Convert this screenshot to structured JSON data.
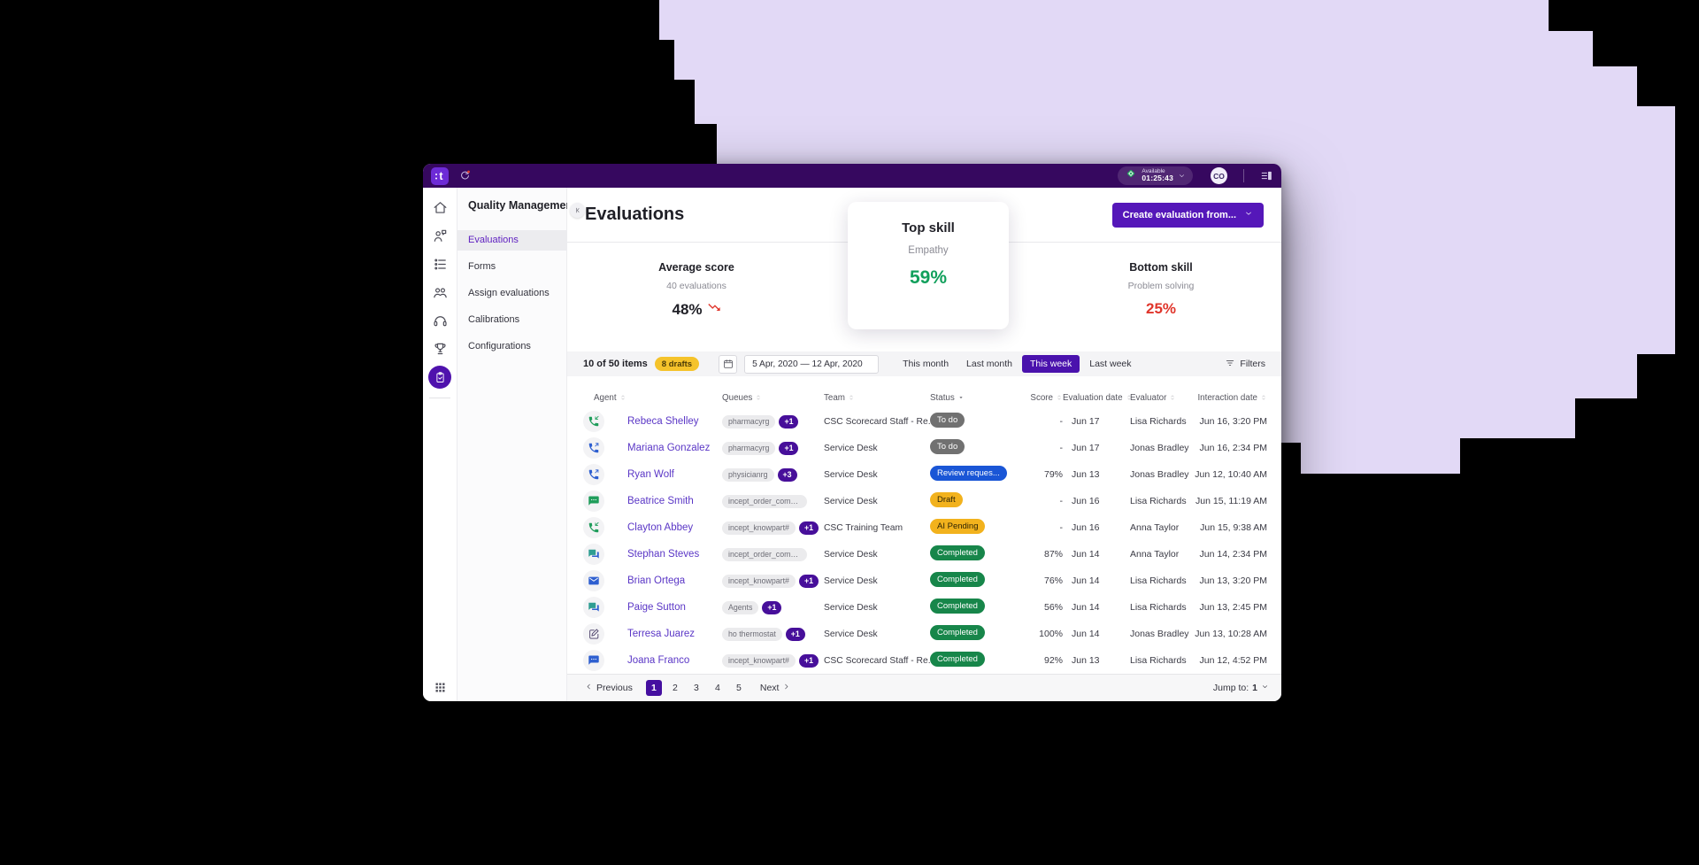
{
  "topbar": {
    "logo_letter": "t",
    "status": {
      "label": "Available",
      "timer": "01:25:43"
    },
    "avatar": "CO"
  },
  "rail": {
    "icons": [
      {
        "name": "home",
        "active": false
      },
      {
        "name": "conversation",
        "active": false
      },
      {
        "name": "workflow",
        "active": false
      },
      {
        "name": "teams",
        "active": false
      },
      {
        "name": "headset",
        "active": false
      },
      {
        "name": "trophy",
        "active": false
      },
      {
        "name": "quality",
        "active": true
      }
    ]
  },
  "nav": {
    "title": "Quality Management",
    "items": [
      {
        "label": "Evaluations",
        "active": true
      },
      {
        "label": "Forms",
        "active": false
      },
      {
        "label": "Assign evaluations",
        "active": false
      },
      {
        "label": "Calibrations",
        "active": false
      },
      {
        "label": "Configurations",
        "active": false
      }
    ]
  },
  "header": {
    "title": "Evaluations",
    "create_button": "Create evaluation from..."
  },
  "stats": {
    "average_score": {
      "title": "Average score",
      "subtitle": "40 evaluations",
      "value": "48%",
      "trend": "down"
    },
    "top_skill": {
      "title": "Top skill",
      "subtitle": "Empathy",
      "value": "59%"
    },
    "bottom_skill": {
      "title": "Bottom skill",
      "subtitle": "Problem solving",
      "value": "25%"
    }
  },
  "filter_bar": {
    "items_count": "10 of 50 items",
    "drafts_badge": "8 drafts",
    "date_range": "5 Apr, 2020 — 12 Apr, 2020",
    "quick_filters": [
      {
        "label": "This month",
        "active": false
      },
      {
        "label": "Last month",
        "active": false
      },
      {
        "label": "This week",
        "active": true
      },
      {
        "label": "Last week",
        "active": false
      }
    ],
    "filters_label": "Filters"
  },
  "table": {
    "columns": [
      {
        "label": "Agent",
        "sort": "both",
        "align": "left"
      },
      {
        "label": "Queues",
        "sort": "both",
        "align": "left"
      },
      {
        "label": "Team",
        "sort": "both",
        "align": "left"
      },
      {
        "label": "Status",
        "sort": "desc",
        "align": "left"
      },
      {
        "label": "Score",
        "sort": "both",
        "align": "right"
      },
      {
        "label": "Evaluation date",
        "sort": "both",
        "align": "left"
      },
      {
        "label": "Evaluator",
        "sort": "both",
        "align": "left"
      },
      {
        "label": "Interaction date",
        "sort": "both",
        "align": "right"
      }
    ],
    "rows": [
      {
        "channel": {
          "icon": "phone-incoming",
          "color": "#1f9d5b"
        },
        "agent": "Rebeca Shelley",
        "queue": "pharmacyrg",
        "queue_extra": "+1",
        "team": "CSC Scorecard Staff - Re...",
        "status": "To do",
        "status_type": "todo",
        "score": "-",
        "evaluation_date": "Jun 17",
        "evaluator": "Lisa Richards",
        "interaction_date": "Jun 16, 3:20 PM"
      },
      {
        "channel": {
          "icon": "phone-outgoing",
          "color": "#2e5fd0"
        },
        "agent": "Mariana Gonzalez",
        "queue": "pharmacyrg",
        "queue_extra": "+1",
        "team": "Service Desk",
        "status": "To do",
        "status_type": "todo",
        "score": "-",
        "evaluation_date": "Jun 17",
        "evaluator": "Jonas Bradley",
        "interaction_date": "Jun 16, 2:34 PM"
      },
      {
        "channel": {
          "icon": "phone-outgoing",
          "color": "#2e5fd0"
        },
        "agent": "Ryan Wolf",
        "queue": "physicianrg",
        "queue_extra": "+3",
        "team": "Service Desk",
        "status": "Review reques...",
        "status_type": "review",
        "score": "79%",
        "evaluation_date": "Jun 13",
        "evaluator": "Jonas Bradley",
        "interaction_date": "Jun 12, 10:40 AM"
      },
      {
        "channel": {
          "icon": "chat",
          "color": "#1f9d5b"
        },
        "agent": "Beatrice Smith",
        "queue": "incept_order_completion",
        "queue_extra": null,
        "team": "Service Desk",
        "status": "Draft",
        "status_type": "draft",
        "score": "-",
        "evaluation_date": "Jun 16",
        "evaluator": "Lisa Richards",
        "interaction_date": "Jun 15, 11:19 AM"
      },
      {
        "channel": {
          "icon": "phone-incoming",
          "color": "#1f9d5b"
        },
        "agent": "Clayton Abbey",
        "queue": "incept_knowpart#",
        "queue_extra": "+1",
        "team": "CSC Training Team",
        "status": "AI Pending",
        "status_type": "pending",
        "score": "-",
        "evaluation_date": "Jun 16",
        "evaluator": "Anna Taylor",
        "interaction_date": "Jun 15, 9:38 AM"
      },
      {
        "channel": {
          "icon": "chat-double",
          "color": "#2f9e92"
        },
        "agent": "Stephan Steves",
        "queue": "incept_order_completion",
        "queue_extra": null,
        "team": "Service Desk",
        "status": "Completed",
        "status_type": "completed",
        "score": "87%",
        "evaluation_date": "Jun 14",
        "evaluator": "Anna Taylor",
        "interaction_date": "Jun 14, 2:34 PM"
      },
      {
        "channel": {
          "icon": "mail",
          "color": "#2e5fd0"
        },
        "agent": "Brian Ortega",
        "queue": "incept_knowpart#",
        "queue_extra": "+1",
        "team": "Service Desk",
        "status": "Completed",
        "status_type": "completed",
        "score": "76%",
        "evaluation_date": "Jun 14",
        "evaluator": "Lisa Richards",
        "interaction_date": "Jun 13, 3:20 PM"
      },
      {
        "channel": {
          "icon": "chat-double",
          "color": "#2f9e92"
        },
        "agent": "Paige Sutton",
        "queue": "Agents",
        "queue_extra": "+1",
        "team": "Service Desk",
        "status": "Completed",
        "status_type": "completed",
        "score": "56%",
        "evaluation_date": "Jun 14",
        "evaluator": "Lisa Richards",
        "interaction_date": "Jun 13, 2:45 PM"
      },
      {
        "channel": {
          "icon": "note",
          "color": "#453a63"
        },
        "agent": "Terresa Juarez",
        "queue": "ho thermostat",
        "queue_extra": "+1",
        "team": "Service Desk",
        "status": "Completed",
        "status_type": "completed",
        "score": "100%",
        "evaluation_date": "Jun 14",
        "evaluator": "Jonas Bradley",
        "interaction_date": "Jun 13, 10:28 AM"
      },
      {
        "channel": {
          "icon": "chat",
          "color": "#2e5fd0"
        },
        "agent": "Joana Franco",
        "queue": "incept_knowpart#",
        "queue_extra": "+1",
        "team": "CSC Scorecard Staff - Re...",
        "status": "Completed",
        "status_type": "completed",
        "score": "92%",
        "evaluation_date": "Jun 13",
        "evaluator": "Lisa Richards",
        "interaction_date": "Jun 12, 4:52 PM"
      }
    ]
  },
  "pagination": {
    "prev_label": "Previous",
    "pages": [
      "1",
      "2",
      "3",
      "4",
      "5"
    ],
    "active_page": "1",
    "next_label": "Next",
    "jump_label": "Jump to:",
    "jump_value": "1"
  },
  "colors": {
    "topbar": "#36085f",
    "accent_button": "#5517b9",
    "active_selection": "#4a12ad",
    "positive_green": "#12a05c",
    "negative_red": "#e0352b",
    "status_completed": "#17864a",
    "status_todo": "#717171",
    "status_draft": "#f2b21d",
    "status_review": "#1a56d6",
    "drafts_badge": "#f5c32b",
    "background_blob": "#e2d9f6"
  }
}
